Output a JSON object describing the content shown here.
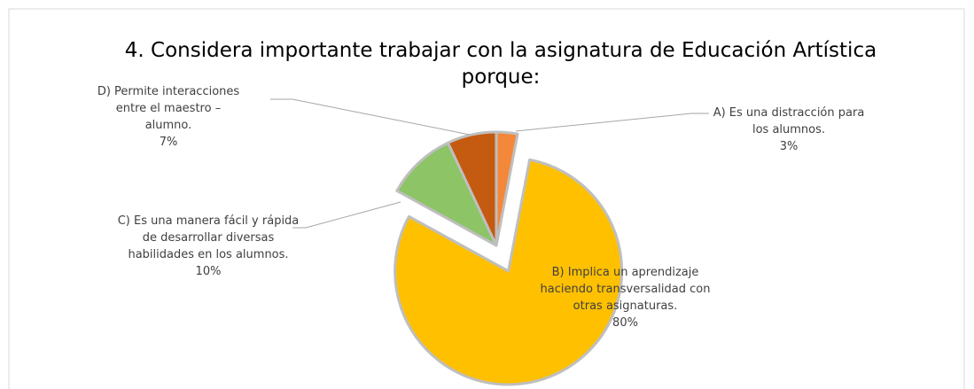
{
  "chart_data": {
    "type": "pie",
    "title": "4. Considera importante trabajar con la asignatura de Educación Artística porque:",
    "categories": [
      "A) Es una distracción para los alumnos.",
      "B) Implica un aprendizaje haciendo transversalidad con otras asignaturas.",
      "C) Es una manera fácil y rápida de desarrollar diversas habilidades en los alumnos.",
      "D) Permite interacciones entre el maestro – alumno."
    ],
    "values": [
      3,
      80,
      10,
      7
    ],
    "value_labels": [
      "3%",
      "80%",
      "10%",
      "7%"
    ],
    "colors": [
      "#f4883a",
      "#ffc000",
      "#8cc466",
      "#c55a11"
    ],
    "exploded": [
      false,
      true,
      false,
      false
    ]
  }
}
